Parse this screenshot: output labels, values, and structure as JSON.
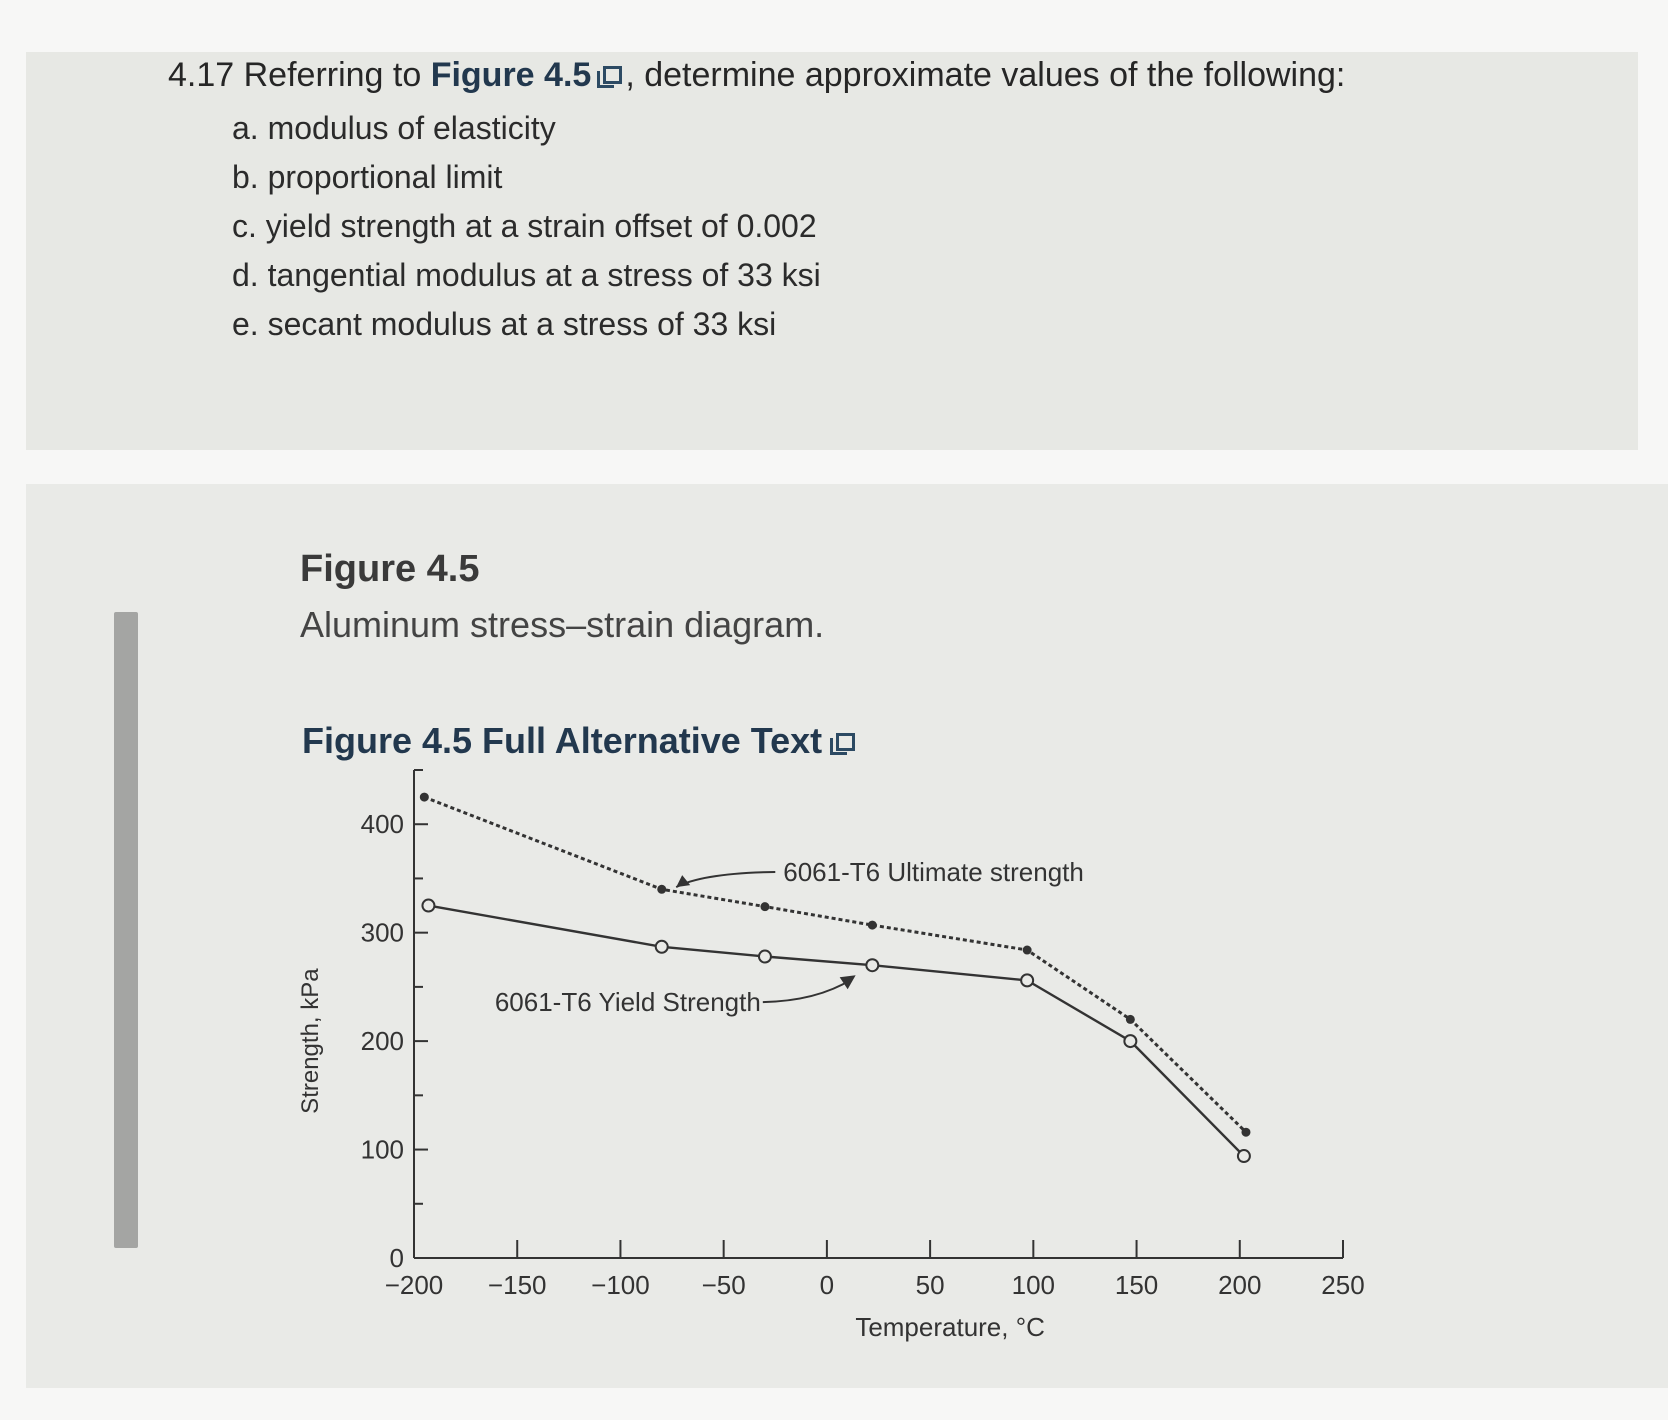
{
  "question": {
    "prefix": "4.17 Referring to ",
    "link": "Figure 4.5",
    "suffix": ", determine approximate values of the following:",
    "items": [
      "a. modulus of elasticity",
      "b. proportional limit",
      "c. yield strength at a strain offset of 0.002",
      "d. tangential modulus at a stress of 33 ksi",
      "e. secant modulus at a stress of 33 ksi"
    ]
  },
  "figure": {
    "title": "Figure 4.5",
    "caption": "Aluminum stress–strain diagram.",
    "alt_link": "Figure 4.5 Full Alternative Text"
  },
  "icons": {
    "external": "external-link-icon"
  },
  "colors": {
    "link": "#22384e",
    "line": "#333333",
    "panel": "#e7e8e4"
  },
  "chart_data": {
    "type": "line",
    "xlabel": "Temperature, °C",
    "ylabel": "Strength, kPa",
    "xlim": [
      -200,
      250
    ],
    "ylim": [
      0,
      450
    ],
    "xticks": [
      -200,
      -150,
      -100,
      -50,
      0,
      50,
      100,
      150,
      200,
      250
    ],
    "xtick_labels": [
      "−200",
      "−150",
      "−100",
      "−50",
      "0",
      "50",
      "100",
      "150",
      "200",
      "250"
    ],
    "yticks": [
      0,
      100,
      200,
      300,
      400
    ],
    "ytick_labels": [
      "0",
      "100",
      "200",
      "300",
      "400"
    ],
    "grid": false,
    "series": [
      {
        "name": "6061-T6 Ultimate strength",
        "style": "dashed",
        "marker": "dot",
        "x": [
          -195,
          -80,
          -30,
          22,
          97,
          147,
          203
        ],
        "y": [
          425,
          340,
          324,
          307,
          284,
          220,
          116
        ]
      },
      {
        "name": "6061-T6 Yield Strength",
        "style": "solid",
        "marker": "circle",
        "x": [
          -193,
          -80,
          -30,
          22,
          97,
          147,
          202
        ],
        "y": [
          325,
          287,
          278,
          270,
          256,
          200,
          94
        ]
      }
    ]
  }
}
